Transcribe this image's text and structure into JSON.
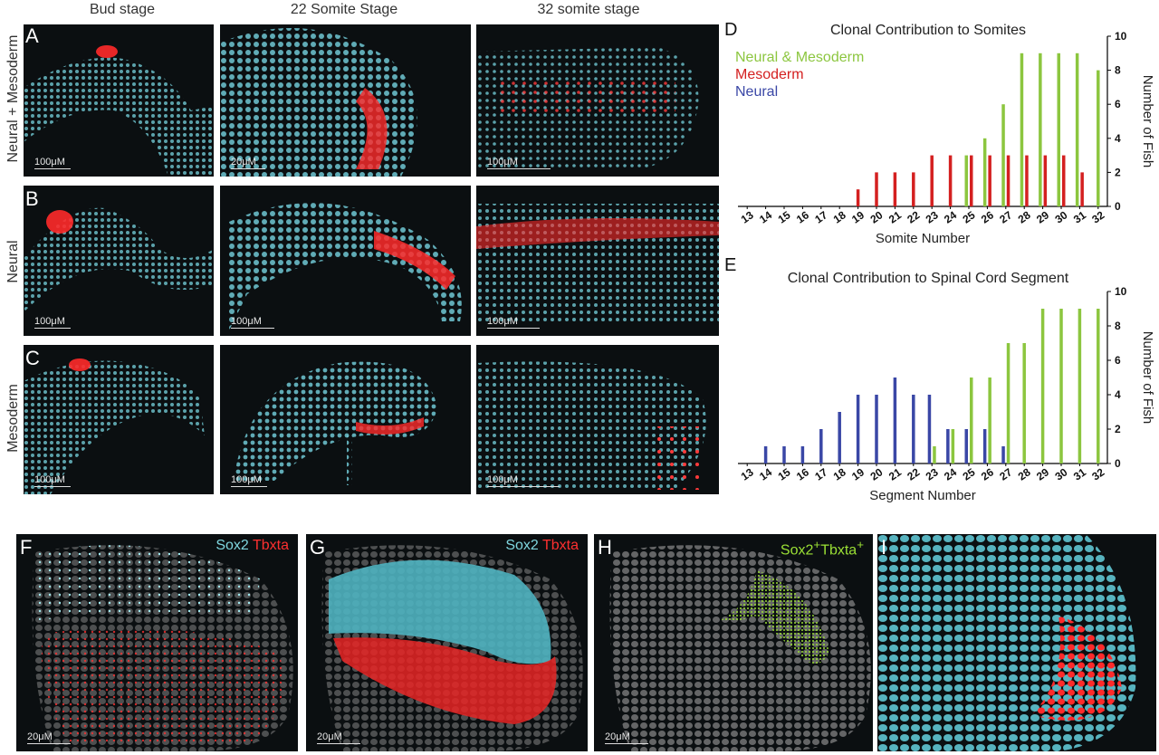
{
  "columns": {
    "bud": "Bud stage",
    "s22": "22 Somite Stage",
    "s32": "32 somite stage"
  },
  "rows": {
    "a": "Neural + Mesoderm",
    "b": "Neural",
    "c": "Mesoderm"
  },
  "panels": {
    "a1": {
      "letter": "A",
      "scale": "100μM"
    },
    "a2": {
      "scale": "20μM"
    },
    "a3": {
      "scale": "100μM"
    },
    "b1": {
      "letter": "B",
      "scale": "100μM"
    },
    "b2": {
      "scale": "100μM"
    },
    "b3": {
      "scale": "100μM"
    },
    "c1": {
      "letter": "C",
      "scale": "100μM"
    },
    "c2": {
      "scale": "100μM"
    },
    "c3": {
      "scale": "100μM"
    },
    "f": {
      "letter": "F",
      "scale": "20μM",
      "ch1": "Sox2",
      "ch2": "Tbxta"
    },
    "g": {
      "letter": "G",
      "scale": "20μM",
      "ch1": "Sox2",
      "ch2": "Tbxta"
    },
    "h": {
      "letter": "H",
      "scale": "20μM",
      "label_a": "Sox2",
      "sup_a": "+",
      "label_b": "Tbxta",
      "sup_b": "+"
    },
    "i": {
      "letter": "I"
    }
  },
  "colors": {
    "neural_mesoderm": "#8cc63f",
    "mesoderm": "#d42020",
    "neural": "#3a47a6",
    "nuclei": "#7fd6df",
    "clone": "#ff2a2a"
  },
  "chart_data": [
    {
      "type": "bar",
      "panel_letter": "D",
      "title": "Clonal Contribution to Somites",
      "xlabel": "Somite Number",
      "ylabel": "Number of Fish",
      "categories": [
        "13",
        "14",
        "15",
        "16",
        "17",
        "18",
        "19",
        "20",
        "21",
        "22",
        "23",
        "24",
        "25",
        "26",
        "27",
        "28",
        "29",
        "30",
        "31",
        "32"
      ],
      "ylim": [
        0,
        10
      ],
      "yticks": [
        "0",
        "2",
        "4",
        "6",
        "8",
        "10"
      ],
      "legend_placement": "top-left",
      "series": [
        {
          "name": "Neural & Mesoderm",
          "color": "#8cc63f",
          "values": [
            0,
            0,
            0,
            0,
            0,
            0,
            0,
            0,
            0,
            0,
            0,
            0,
            3,
            4,
            6,
            9,
            9,
            9,
            9,
            8
          ]
        },
        {
          "name": "Mesoderm",
          "color": "#d42020",
          "values": [
            0,
            0,
            0,
            0,
            0,
            0,
            1,
            2,
            2,
            2,
            3,
            3,
            3,
            3,
            3,
            3,
            3,
            3,
            2,
            0
          ]
        },
        {
          "name": "Neural",
          "color": "#3a47a6",
          "values": [
            0,
            0,
            0,
            0,
            0,
            0,
            0,
            0,
            0,
            0,
            0,
            0,
            0,
            0,
            0,
            0,
            0,
            0,
            0,
            0
          ]
        }
      ]
    },
    {
      "type": "bar",
      "panel_letter": "E",
      "title": "Clonal Contribution to Spinal Cord Segment",
      "xlabel": "Segment Number",
      "ylabel": "Number of Fish",
      "categories": [
        "13",
        "14",
        "15",
        "16",
        "17",
        "18",
        "19",
        "20",
        "21",
        "22",
        "23",
        "24",
        "25",
        "26",
        "27",
        "28",
        "29",
        "30",
        "31",
        "32"
      ],
      "ylim": [
        0,
        10
      ],
      "yticks": [
        "0",
        "2",
        "4",
        "6",
        "8",
        "10"
      ],
      "series": [
        {
          "name": "Neural",
          "color": "#3a47a6",
          "values": [
            0,
            1,
            1,
            1,
            2,
            3,
            4,
            4,
            5,
            4,
            4,
            2,
            2,
            2,
            1,
            0,
            0,
            0,
            0,
            0
          ]
        },
        {
          "name": "Neural & Mesoderm",
          "color": "#8cc63f",
          "values": [
            0,
            0,
            0,
            0,
            0,
            0,
            0,
            0,
            0,
            0,
            1,
            2,
            5,
            5,
            7,
            7,
            9,
            9,
            9,
            9
          ]
        }
      ]
    }
  ]
}
